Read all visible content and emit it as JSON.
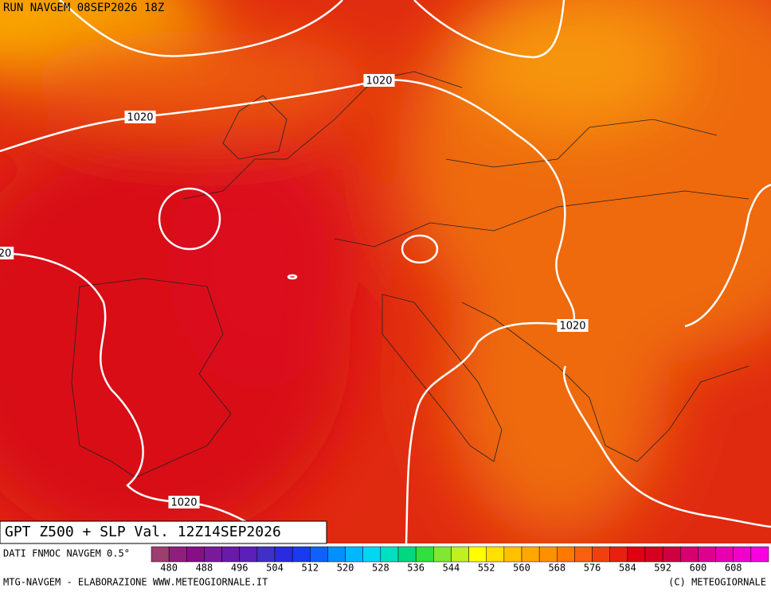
{
  "header": {
    "run": "RUN NAVGEM 08SEP2026 18Z"
  },
  "title": "GPT Z500 + SLP Val. 12Z14SEP2026",
  "contour_labels": [
    "1020",
    "1020",
    "20",
    "1020",
    "1020"
  ],
  "legend": {
    "source": "DATI FNMOC NAVGEM 0.5°",
    "ticks": [
      480,
      488,
      496,
      504,
      512,
      520,
      528,
      536,
      544,
      552,
      560,
      568,
      576,
      584,
      592,
      600,
      608
    ],
    "colors": [
      "#9c3f6e",
      "#8f1f7c",
      "#860f88",
      "#7a1a9a",
      "#6a1aa8",
      "#5a20b8",
      "#4030c8",
      "#2a2ae0",
      "#1a3af0",
      "#1060ff",
      "#0090ff",
      "#00b8ff",
      "#00d8f0",
      "#00e0c0",
      "#00d880",
      "#30e040",
      "#80e830",
      "#c0f020",
      "#ffff00",
      "#ffe000",
      "#ffc000",
      "#ffa800",
      "#ff9000",
      "#ff7800",
      "#f86010",
      "#f04010",
      "#e82010",
      "#e00010",
      "#d80020",
      "#d00040",
      "#d80070",
      "#e00090",
      "#e800b0",
      "#f000c8",
      "#f800e0"
    ]
  },
  "footer": {
    "left": "MTG-NAVGEM - ELABORAZIONE WWW.METEOGIORNALE.IT",
    "right": "(C) METEOGIORNALE"
  }
}
